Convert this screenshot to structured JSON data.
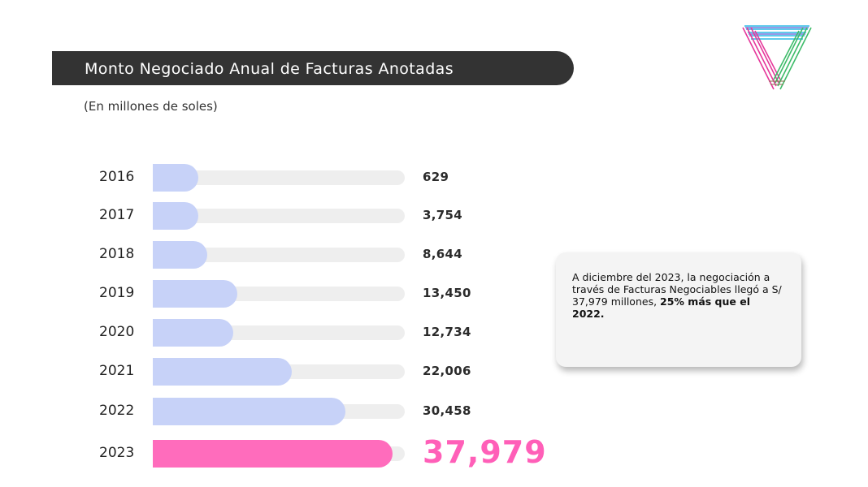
{
  "header": {
    "title": "Monto Negociado Anual de Facturas Anotadas",
    "subtitle": "(En millones de soles)"
  },
  "logo": {
    "icon": "triangle-logo-icon"
  },
  "chart_data": {
    "type": "bar",
    "orientation": "horizontal",
    "categories": [
      "2016",
      "2017",
      "2018",
      "2019",
      "2020",
      "2021",
      "2022",
      "2023"
    ],
    "values": [
      629,
      3754,
      8644,
      13450,
      12734,
      22006,
      30458,
      37979
    ],
    "value_labels": [
      "629",
      "3,754",
      "8,644",
      "13,450",
      "12,734",
      "22,006",
      "30,458",
      "37,979"
    ],
    "highlight_index": 7,
    "colors": {
      "bar": "#c7d2f8",
      "highlight": "#ff6cbc",
      "track": "#eeeeee",
      "highlight_text": "#ff5fb8"
    }
  },
  "callout": {
    "text_plain": "A diciembre del 2023, la negociación a través de Facturas Negociables llegó a S/ 37,979 millones, ",
    "text_bold": "25% más que el 2022."
  }
}
